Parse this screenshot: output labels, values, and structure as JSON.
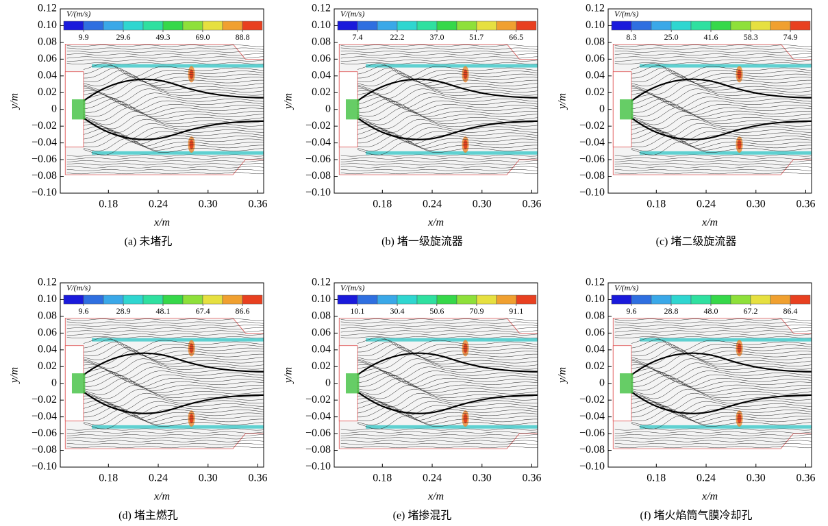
{
  "chart_data": [
    {
      "type": "streamline",
      "caption": "(a) 未堵孔",
      "x_label": "x/m",
      "y_label": "y/m",
      "xlim": [
        0.122,
        0.367
      ],
      "ylim": [
        -0.1,
        0.12
      ],
      "xticks": [
        0.18,
        {
          "value": 0.24,
          "label": "0.24"
        },
        {
          "value": 0.3,
          "label": "0.30"
        },
        0.36
      ],
      "yticks": [
        0.12,
        {
          "value": 0.1,
          "label": "0.10"
        },
        {
          "value": 0.08,
          "label": "0.08"
        },
        {
          "value": 0.06,
          "label": "0.06"
        },
        {
          "value": 0.04,
          "label": "0.04"
        },
        {
          "value": 0.02,
          "label": "0.02"
        },
        0,
        {
          "value": -0.02,
          "label": "−0.02"
        },
        {
          "value": -0.04,
          "label": "−0.04"
        },
        {
          "value": -0.06,
          "label": "−0.06"
        },
        {
          "value": -0.08,
          "label": "−0.08"
        },
        {
          "value": -0.1,
          "label": "−0.10"
        }
      ],
      "colorbar": {
        "label": "V/(m/s)",
        "lim": [
          0,
          98.6
        ],
        "ticks": [
          9.9,
          29.6,
          49.3,
          {
            "value": 69,
            "label": "69.0"
          },
          88.8
        ],
        "colors": [
          "#1a1adb",
          "#2f6fe0",
          "#3aa8e8",
          "#2fd6d0",
          "#2fe0a0",
          "#36d84a",
          "#8ee03a",
          "#e6e040",
          "#f0a030",
          "#e84020"
        ]
      }
    },
    {
      "type": "streamline",
      "caption": "(b) 堵一级旋流器",
      "x_label": "x/m",
      "y_label": "y/m",
      "xlim": [
        0.122,
        0.367
      ],
      "ylim": [
        -0.1,
        0.12
      ],
      "xticks": [
        0.18,
        {
          "value": 0.24,
          "label": "0.24"
        },
        {
          "value": 0.3,
          "label": "0.30"
        },
        0.36
      ],
      "yticks": [
        0.12,
        {
          "value": 0.1,
          "label": "0.10"
        },
        {
          "value": 0.08,
          "label": "0.08"
        },
        {
          "value": 0.06,
          "label": "0.06"
        },
        {
          "value": 0.04,
          "label": "0.04"
        },
        {
          "value": 0.02,
          "label": "0.02"
        },
        0,
        {
          "value": -0.02,
          "label": "−0.02"
        },
        {
          "value": -0.04,
          "label": "−0.04"
        },
        {
          "value": -0.06,
          "label": "−0.06"
        },
        {
          "value": -0.08,
          "label": "−0.08"
        },
        {
          "value": -0.1,
          "label": "−0.10"
        }
      ],
      "colorbar": {
        "label": "V/(m/s)",
        "lim": [
          0,
          74
        ],
        "ticks": [
          7.4,
          22.2,
          {
            "value": 37,
            "label": "37.0"
          },
          51.7,
          66.5
        ],
        "colors": [
          "#1a1adb",
          "#2f6fe0",
          "#3aa8e8",
          "#2fd6d0",
          "#2fe0a0",
          "#36d84a",
          "#8ee03a",
          "#e6e040",
          "#f0a030",
          "#e84020"
        ]
      }
    },
    {
      "type": "streamline",
      "caption": "(c) 堵二级旋流器",
      "x_label": "x/m",
      "y_label": "y/m",
      "xlim": [
        0.122,
        0.367
      ],
      "ylim": [
        -0.1,
        0.12
      ],
      "xticks": [
        0.18,
        {
          "value": 0.24,
          "label": "0.24"
        },
        {
          "value": 0.3,
          "label": "0.30"
        },
        0.36
      ],
      "yticks": [
        0.12,
        {
          "value": 0.1,
          "label": "0.10"
        },
        {
          "value": 0.08,
          "label": "0.08"
        },
        {
          "value": 0.06,
          "label": "0.06"
        },
        {
          "value": 0.04,
          "label": "0.04"
        },
        {
          "value": 0.02,
          "label": "0.02"
        },
        0,
        {
          "value": -0.02,
          "label": "−0.02"
        },
        {
          "value": -0.04,
          "label": "−0.04"
        },
        {
          "value": -0.06,
          "label": "−0.06"
        },
        {
          "value": -0.08,
          "label": "−0.08"
        },
        {
          "value": -0.1,
          "label": "−0.10"
        }
      ],
      "colorbar": {
        "label": "V/(m/s)",
        "lim": [
          0,
          83.2
        ],
        "ticks": [
          8.3,
          {
            "value": 25,
            "label": "25.0"
          },
          41.6,
          58.3,
          74.9
        ],
        "colors": [
          "#1a1adb",
          "#2f6fe0",
          "#3aa8e8",
          "#2fd6d0",
          "#2fe0a0",
          "#36d84a",
          "#8ee03a",
          "#e6e040",
          "#f0a030",
          "#e84020"
        ]
      }
    },
    {
      "type": "streamline",
      "caption": "(d) 堵主燃孔",
      "x_label": "x/m",
      "y_label": "y/m",
      "xlim": [
        0.122,
        0.367
      ],
      "ylim": [
        -0.1,
        0.12
      ],
      "xticks": [
        0.18,
        {
          "value": 0.24,
          "label": "0.24"
        },
        {
          "value": 0.3,
          "label": "0.30"
        },
        0.36
      ],
      "yticks": [
        0.12,
        {
          "value": 0.1,
          "label": "0.10"
        },
        {
          "value": 0.08,
          "label": "0.08"
        },
        {
          "value": 0.06,
          "label": "0.06"
        },
        {
          "value": 0.04,
          "label": "0.04"
        },
        {
          "value": 0.02,
          "label": "0.02"
        },
        0,
        {
          "value": -0.02,
          "label": "−0.02"
        },
        {
          "value": -0.04,
          "label": "−0.04"
        },
        {
          "value": -0.06,
          "label": "−0.06"
        },
        {
          "value": -0.08,
          "label": "−0.08"
        },
        {
          "value": -0.1,
          "label": "−0.10"
        }
      ],
      "colorbar": {
        "label": "V/(m/s)",
        "lim": [
          0,
          96.2
        ],
        "ticks": [
          9.6,
          28.9,
          48.1,
          67.4,
          86.6
        ],
        "colors": [
          "#1a1adb",
          "#2f6fe0",
          "#3aa8e8",
          "#2fd6d0",
          "#2fe0a0",
          "#36d84a",
          "#8ee03a",
          "#e6e040",
          "#f0a030",
          "#e84020"
        ]
      }
    },
    {
      "type": "streamline",
      "caption": "(e) 堵掺混孔",
      "x_label": "x/m",
      "y_label": "y/m",
      "xlim": [
        0.122,
        0.367
      ],
      "ylim": [
        -0.1,
        0.12
      ],
      "xticks": [
        0.18,
        {
          "value": 0.24,
          "label": "0.24"
        },
        {
          "value": 0.3,
          "label": "0.30"
        },
        0.36
      ],
      "yticks": [
        0.12,
        {
          "value": 0.1,
          "label": "0.10"
        },
        {
          "value": 0.08,
          "label": "0.08"
        },
        {
          "value": 0.06,
          "label": "0.06"
        },
        {
          "value": 0.04,
          "label": "0.04"
        },
        {
          "value": 0.02,
          "label": "0.02"
        },
        0,
        {
          "value": -0.02,
          "label": "−0.02"
        },
        {
          "value": -0.04,
          "label": "−0.04"
        },
        {
          "value": -0.06,
          "label": "−0.06"
        },
        {
          "value": -0.08,
          "label": "−0.08"
        },
        {
          "value": -0.1,
          "label": "−0.10"
        }
      ],
      "colorbar": {
        "label": "V/(m/s)",
        "lim": [
          0,
          101.3
        ],
        "ticks": [
          10.1,
          30.4,
          50.6,
          70.9,
          91.1
        ],
        "colors": [
          "#1a1adb",
          "#2f6fe0",
          "#3aa8e8",
          "#2fd6d0",
          "#2fe0a0",
          "#36d84a",
          "#8ee03a",
          "#e6e040",
          "#f0a030",
          "#e84020"
        ]
      }
    },
    {
      "type": "streamline",
      "caption": "(f) 堵火焰筒气膜冷却孔",
      "x_label": "x/m",
      "y_label": "y/m",
      "xlim": [
        0.122,
        0.367
      ],
      "ylim": [
        -0.1,
        0.12
      ],
      "xticks": [
        0.18,
        {
          "value": 0.24,
          "label": "0.24"
        },
        {
          "value": 0.3,
          "label": "0.30"
        },
        0.36
      ],
      "yticks": [
        0.12,
        {
          "value": 0.1,
          "label": "0.10"
        },
        {
          "value": 0.08,
          "label": "0.08"
        },
        {
          "value": 0.06,
          "label": "0.06"
        },
        {
          "value": 0.04,
          "label": "0.04"
        },
        {
          "value": 0.02,
          "label": "0.02"
        },
        0,
        {
          "value": -0.02,
          "label": "−0.02"
        },
        {
          "value": -0.04,
          "label": "−0.04"
        },
        {
          "value": -0.06,
          "label": "−0.06"
        },
        {
          "value": -0.08,
          "label": "−0.08"
        },
        {
          "value": -0.1,
          "label": "−0.10"
        }
      ],
      "colorbar": {
        "label": "V/(m/s)",
        "lim": [
          0,
          96
        ],
        "ticks": [
          9.6,
          28.8,
          {
            "value": 48,
            "label": "48.0"
          },
          67.2,
          86.4
        ],
        "colors": [
          "#1a1adb",
          "#2f6fe0",
          "#3aa8e8",
          "#2fd6d0",
          "#2fe0a0",
          "#36d84a",
          "#8ee03a",
          "#e6e040",
          "#f0a030",
          "#e84020"
        ]
      }
    }
  ]
}
